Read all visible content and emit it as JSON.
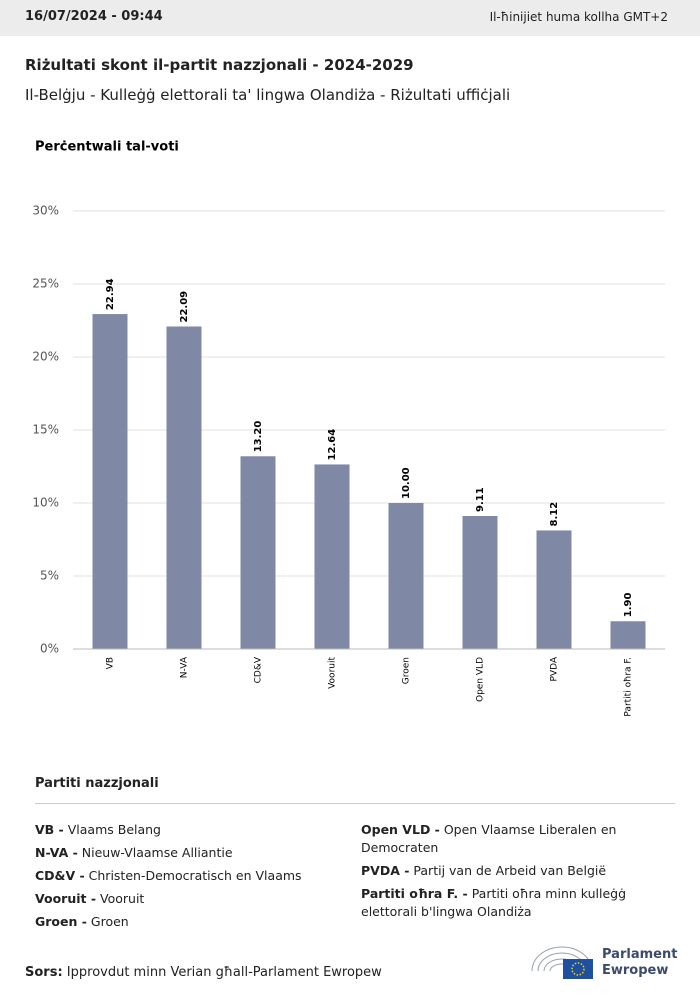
{
  "header": {
    "timestamp": "16/07/2024 - 09:44",
    "timezone": "Il-ħinijiet huma kollha GMT+2"
  },
  "title": "Riżultati skont il-partit nazzjonali - 2024-2029",
  "subtitle": "Il-Belġju - Kulleġġ elettorali ta' lingwa Olandiża - Riżultati uffiċjali",
  "chart_data": {
    "type": "bar",
    "y_label": "Perċentwali tal-voti",
    "categories": [
      "VB",
      "N-VA",
      "CD&V",
      "Vooruit",
      "Groen",
      "Open VLD",
      "PVDA",
      "Partiti oħra F."
    ],
    "values": [
      22.94,
      22.09,
      13.2,
      12.64,
      10,
      9.11,
      8.12,
      1.9
    ],
    "value_labels": [
      "22.94",
      "22.09",
      "13.20",
      "12.64",
      "10.00",
      "9.11",
      "8.12",
      "1.90"
    ],
    "color": "#7f88a4",
    "ylim": [
      0,
      30
    ],
    "yticks": [
      {
        "value": 0,
        "label": "0%"
      },
      {
        "value": 5,
        "label": "5%"
      },
      {
        "value": 10,
        "label": "10%"
      },
      {
        "value": 15,
        "label": "15%"
      },
      {
        "value": 20,
        "label": "20%"
      },
      {
        "value": 25,
        "label": "25%"
      },
      {
        "value": 30,
        "label": "30%"
      }
    ],
    "grid": true
  },
  "legend": {
    "title": "Partiti nazzjonali",
    "left": [
      {
        "abbr": "VB -",
        "name": "Vlaams Belang"
      },
      {
        "abbr": "N-VA -",
        "name": "Nieuw-Vlaamse Alliantie"
      },
      {
        "abbr": "CD&V -",
        "name": "Christen-Democratisch en Vlaams"
      },
      {
        "abbr": "Vooruit -",
        "name": "Vooruit"
      },
      {
        "abbr": "Groen -",
        "name": "Groen"
      }
    ],
    "right": [
      {
        "abbr": "Open VLD -",
        "name": "Open Vlaamse Liberalen en Democraten"
      },
      {
        "abbr": "PVDA -",
        "name": "Partij van de Arbeid van België"
      },
      {
        "abbr": "Partiti oħra F. -",
        "name": "Partiti oħra minn kulleġġ elettorali b'lingwa Olandiża"
      }
    ]
  },
  "footer": {
    "source_label": "Sors:",
    "source": "Ipprovdut minn Verian għall-Parlament Ewropew",
    "logo_line1": "Parlament",
    "logo_line2": "Ewropew"
  }
}
